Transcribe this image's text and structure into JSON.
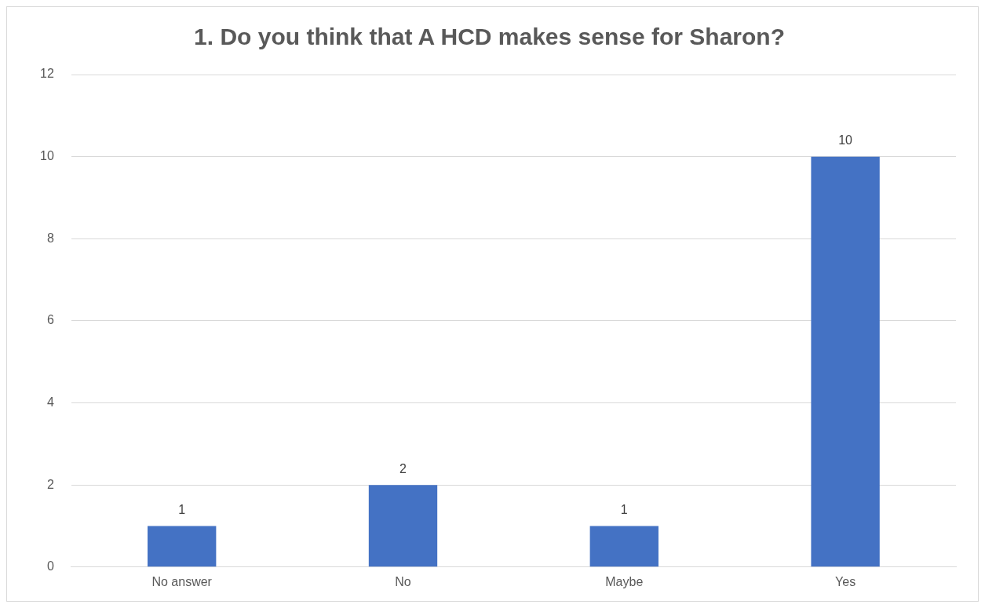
{
  "chart_data": {
    "type": "bar",
    "title": "1. Do you think that A HCD makes sense for Sharon?",
    "categories": [
      "No answer",
      "No",
      "Maybe",
      "Yes"
    ],
    "values": [
      1,
      2,
      1,
      10
    ],
    "color": "#4472c4",
    "ylim": [
      0,
      12
    ],
    "yticks": [
      0,
      2,
      4,
      6,
      8,
      10,
      12
    ],
    "grid": "y",
    "data_labels": true
  }
}
